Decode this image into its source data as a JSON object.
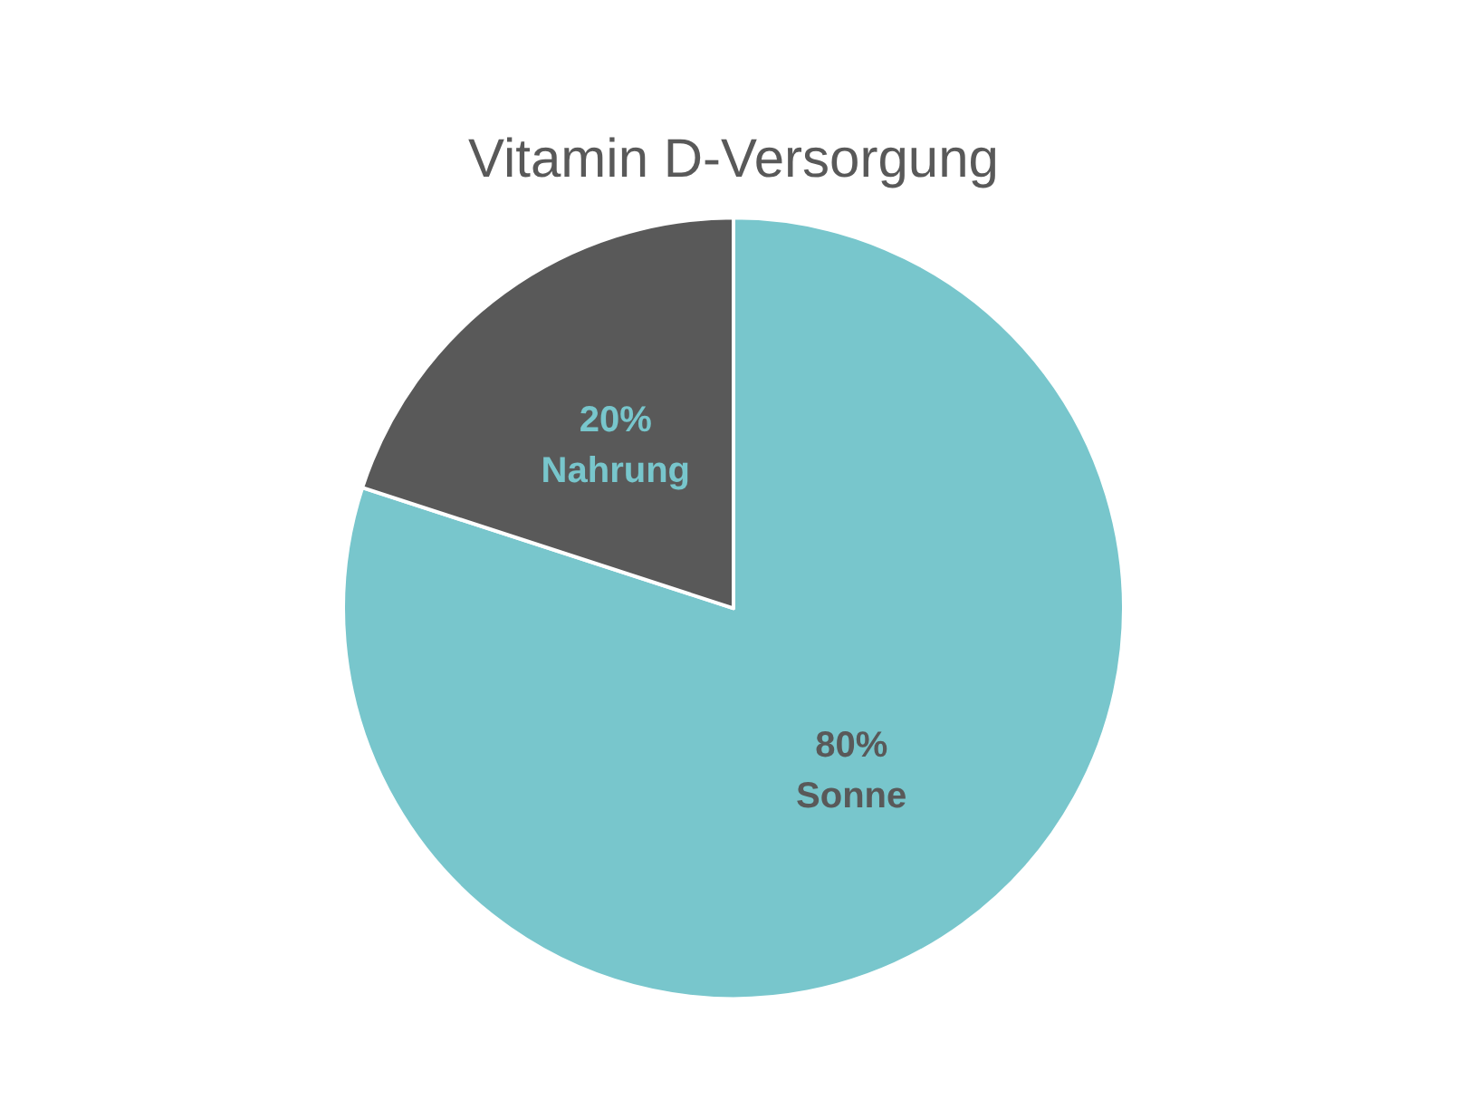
{
  "chart_data": {
    "type": "pie",
    "title": "Vitamin D-Versorgung",
    "categories": [
      "Sonne",
      "Nahrung"
    ],
    "values": [
      80,
      20
    ],
    "value_labels": [
      "80%",
      "20%"
    ],
    "colors": [
      "#78c6cc",
      "#595959"
    ],
    "legend": false
  }
}
